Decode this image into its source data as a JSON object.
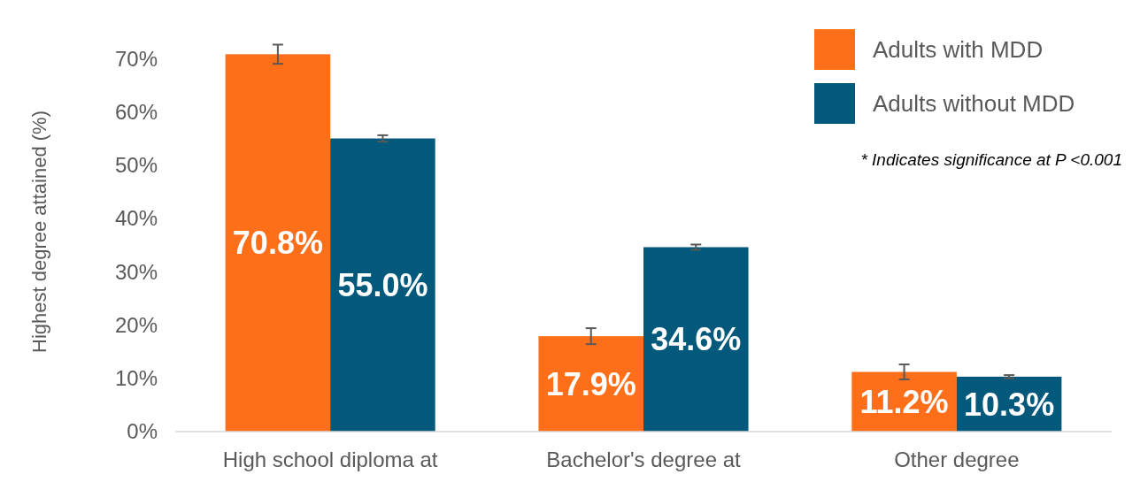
{
  "chart_data": {
    "type": "bar",
    "ylabel": "Highest degree attained (%)",
    "categories": [
      "High school diploma at",
      "Bachelor's degree at",
      "Other degree"
    ],
    "series": [
      {
        "name": "Adults with MDD",
        "color": "#ff6f1a",
        "values": [
          70.8,
          17.9,
          11.2
        ],
        "value_labels": [
          "70.8%",
          "17.9%",
          "11.2%"
        ],
        "errors": [
          1.8,
          1.5,
          1.4
        ]
      },
      {
        "name": "Adults without MDD",
        "color": "#03597c",
        "values": [
          55.0,
          34.6,
          10.3
        ],
        "value_labels": [
          "55.0%",
          "34.6%",
          "10.3%"
        ],
        "errors": [
          0.6,
          0.5,
          0.3
        ]
      }
    ],
    "ylim": [
      0,
      75
    ],
    "yticks": [
      {
        "value": 0,
        "label": "0%"
      },
      {
        "value": 10,
        "label": "10%"
      },
      {
        "value": 20,
        "label": "20%"
      },
      {
        "value": 30,
        "label": "30%"
      },
      {
        "value": 40,
        "label": "40%"
      },
      {
        "value": 50,
        "label": "50%"
      },
      {
        "value": 60,
        "label": "60%"
      },
      {
        "value": 70,
        "label": "70%"
      }
    ],
    "annotations": [
      "* Indicates significance at P <0.001"
    ],
    "legend": "top right",
    "grid": false
  }
}
